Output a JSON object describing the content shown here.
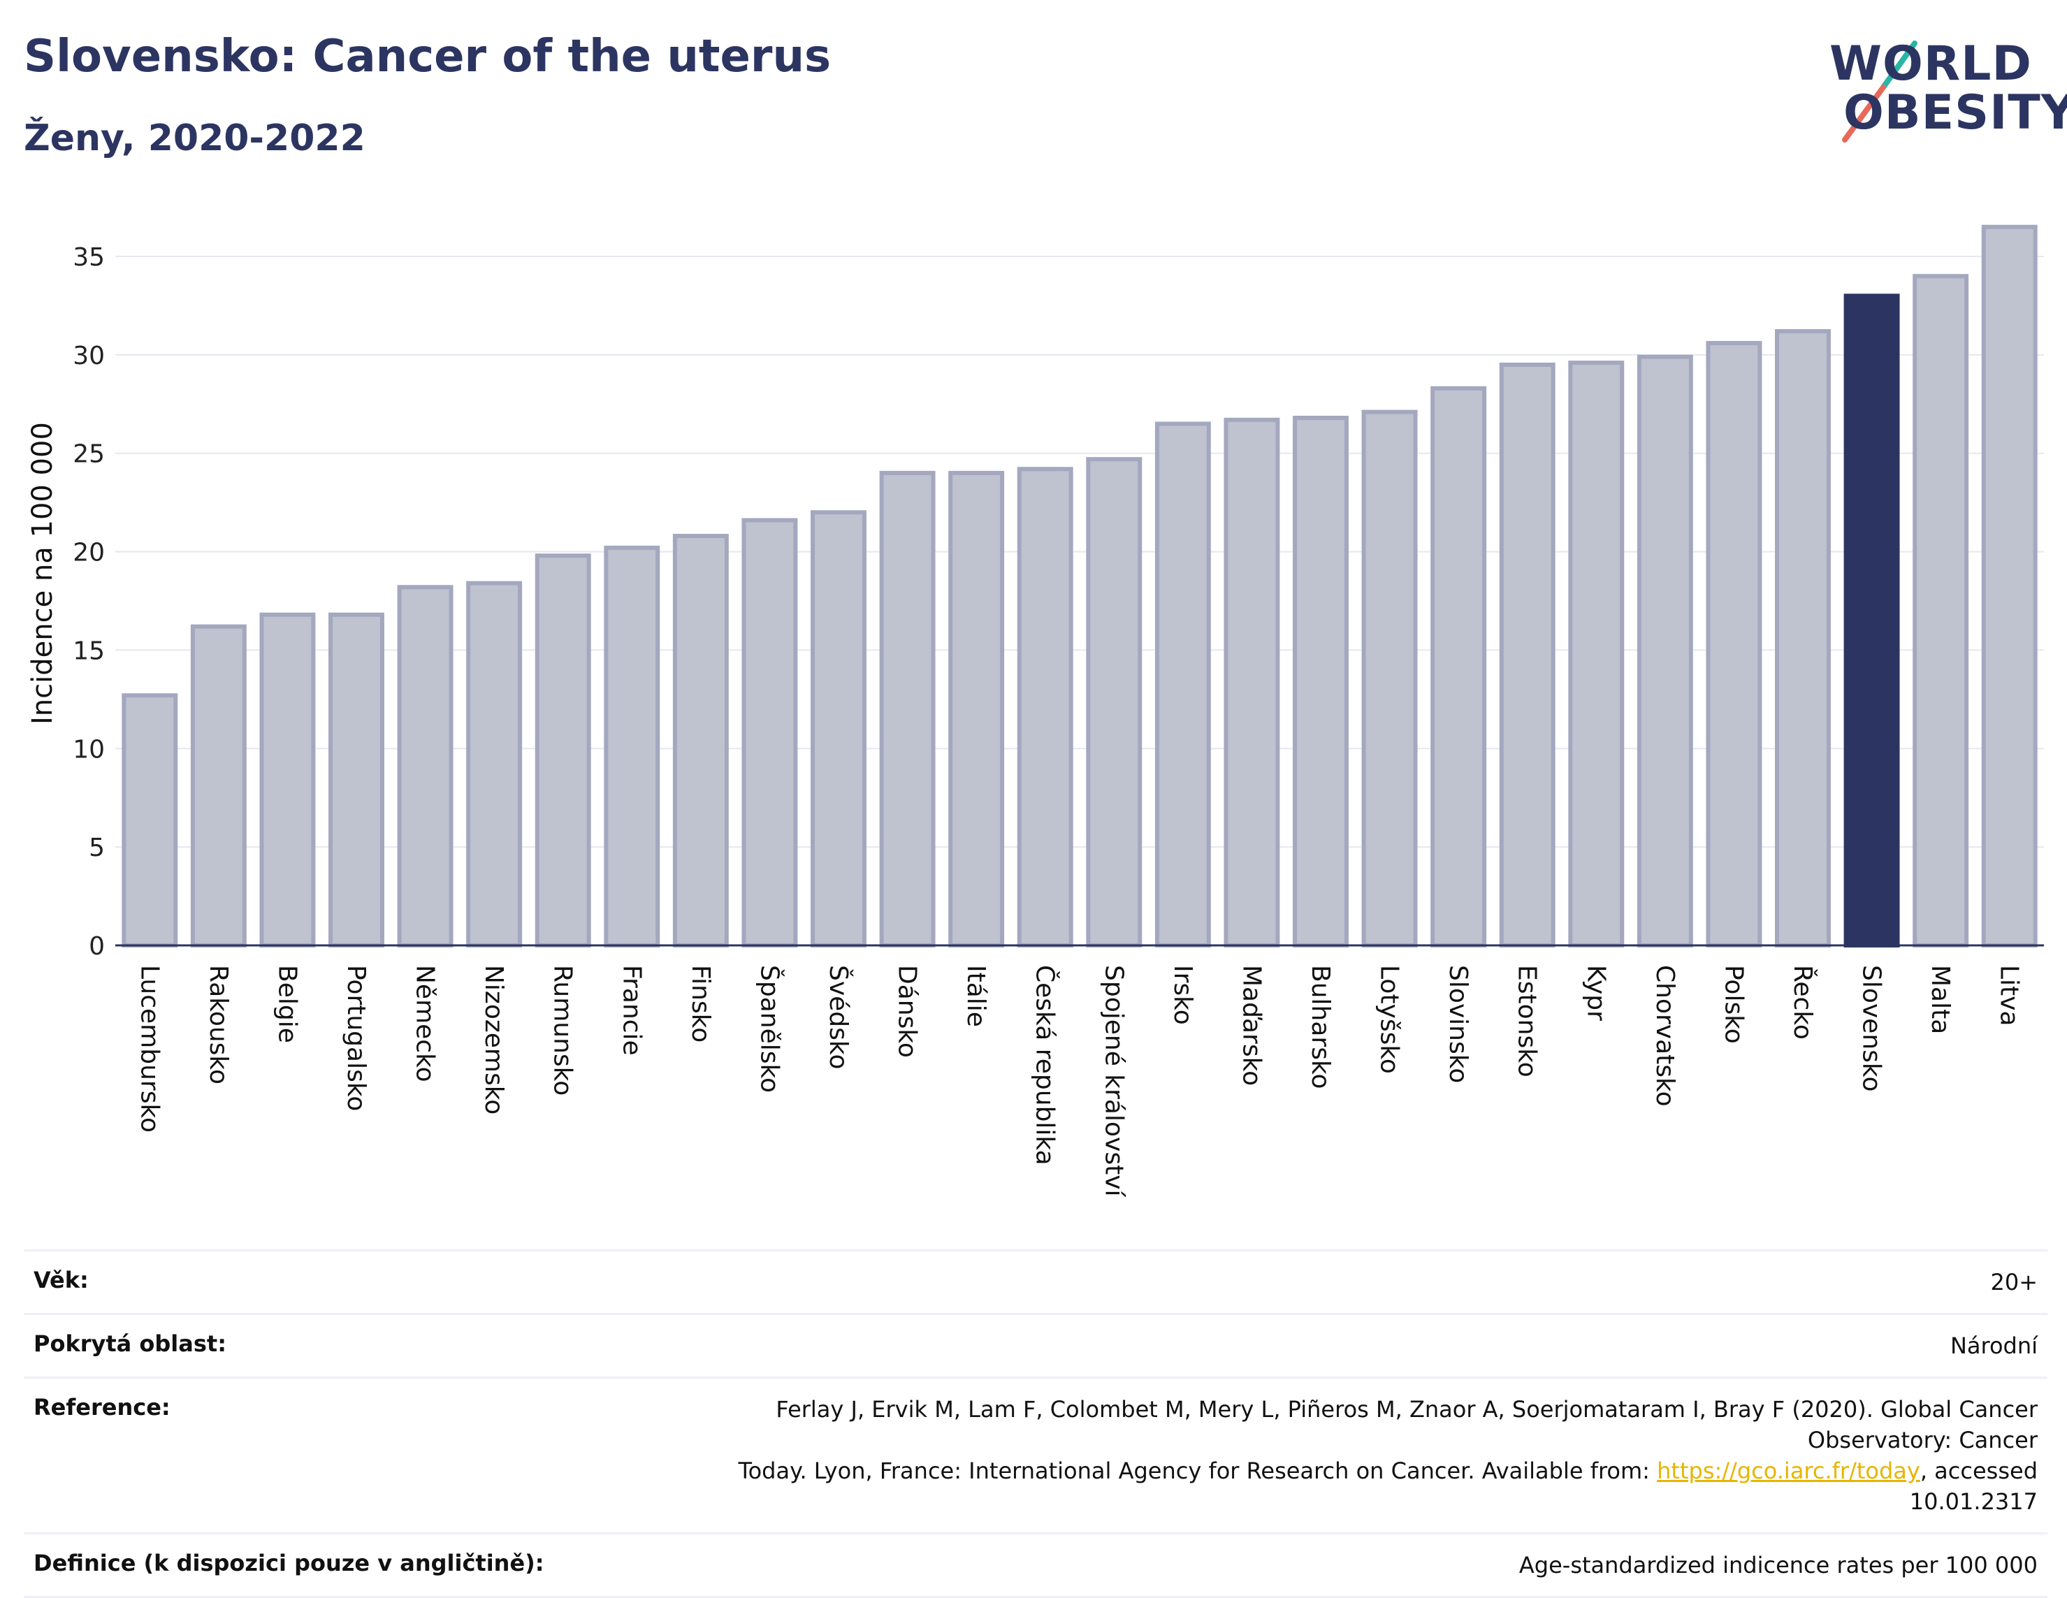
{
  "title": "Slovensko: Cancer of the uterus",
  "subtitle": "Ženy, 2020-2022",
  "logo": {
    "line1": "WORLD",
    "line2": "OBESITY",
    "accent_teal": "#2ab5a5",
    "accent_coral": "#e8685a"
  },
  "chart_data": {
    "type": "bar",
    "ylabel": "Incidence na 100 000",
    "xlabel": "",
    "ylim": [
      0,
      37
    ],
    "yticks": [
      0,
      5,
      10,
      15,
      20,
      25,
      30,
      35
    ],
    "grid": true,
    "highlight": "Slovensko",
    "colors": {
      "default": "#bfc2cf",
      "border": "#a3a8bf",
      "highlight": "#2c3561"
    },
    "categories": [
      "Lucembursko",
      "Rakousko",
      "Belgie",
      "Portugalsko",
      "Německo",
      "Nizozemsko",
      "Rumunsko",
      "Francie",
      "Finsko",
      "Španělsko",
      "Švédsko",
      "Dánsko",
      "Itálie",
      "Česká republika",
      "Spojené království",
      "Irsko",
      "Maďarsko",
      "Bulharsko",
      "Lotyšsko",
      "Slovinsko",
      "Estonsko",
      "Kypr",
      "Chorvatsko",
      "Polsko",
      "Řecko",
      "Slovensko",
      "Malta",
      "Litva"
    ],
    "values": [
      12.7,
      16.2,
      16.8,
      16.8,
      18.2,
      18.4,
      19.8,
      20.2,
      20.8,
      21.6,
      22.0,
      24.0,
      24.0,
      24.2,
      24.7,
      26.5,
      26.7,
      26.8,
      27.1,
      28.3,
      29.5,
      29.6,
      29.9,
      30.6,
      31.2,
      33.0,
      34.0,
      36.5
    ]
  },
  "meta": {
    "age_label": "Věk:",
    "age_value": "20+",
    "area_label": "Pokrytá oblast:",
    "area_value": "Národní",
    "ref_label": "Reference:",
    "ref_text1": "Ferlay J, Ervik M, Lam F, Colombet M, Mery L, Piñeros M, Znaor A, Soerjomataram I, Bray F (2020). Global Cancer Observatory: Cancer",
    "ref_text2": "Today. Lyon, France: International Agency for Research on Cancer. Available from: ",
    "ref_link": "https://gco.iarc.fr/today",
    "ref_text3": ", accessed 10.01.2317",
    "def_label": "Definice (k dispozici pouze v angličtině):",
    "def_value": "Age-standardized indicence rates per 100 000"
  }
}
